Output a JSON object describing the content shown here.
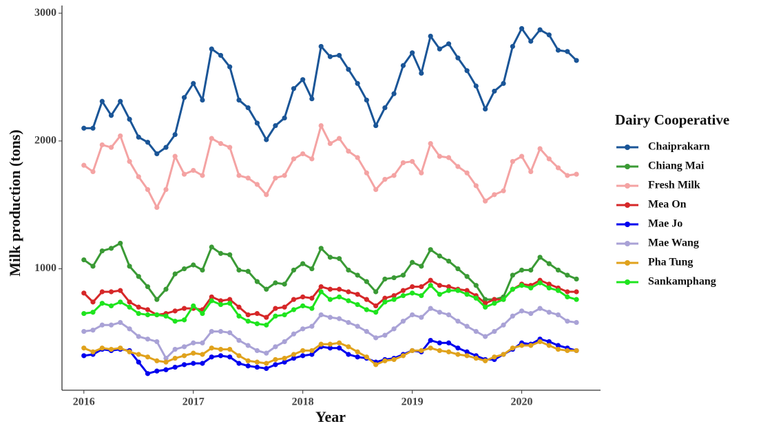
{
  "chart_data": {
    "type": "line",
    "x_label": "Year",
    "y_label": "Milk production (tons)",
    "legend_title": "Dairy Cooperative",
    "legend_position": "right",
    "xlim": [
      2015.8,
      2020.72
    ],
    "ylim": [
      50,
      3060
    ],
    "xticks": [
      2016,
      2017,
      2018,
      2019,
      2020
    ],
    "yticks": [
      1000,
      2000,
      3000
    ],
    "x": [
      2016,
      2016.083,
      2016.167,
      2016.25,
      2016.333,
      2016.417,
      2016.5,
      2016.583,
      2016.667,
      2016.75,
      2016.833,
      2016.917,
      2017,
      2017.083,
      2017.167,
      2017.25,
      2017.333,
      2017.417,
      2017.5,
      2017.583,
      2017.667,
      2017.75,
      2017.833,
      2017.917,
      2018,
      2018.083,
      2018.167,
      2018.25,
      2018.333,
      2018.417,
      2018.5,
      2018.583,
      2018.667,
      2018.75,
      2018.833,
      2018.917,
      2019,
      2019.083,
      2019.167,
      2019.25,
      2019.333,
      2019.417,
      2019.5,
      2019.583,
      2019.667,
      2019.75,
      2019.833,
      2019.917,
      2020,
      2020.083,
      2020.167,
      2020.25,
      2020.333,
      2020.417,
      2020.5
    ],
    "series": [
      {
        "name": "Chaiprakarn",
        "color": "#1a5597",
        "values": [
          2100,
          2100,
          2310,
          2200,
          2310,
          2170,
          2030,
          1990,
          1900,
          1950,
          2050,
          2340,
          2450,
          2320,
          2720,
          2670,
          2580,
          2320,
          2260,
          2140,
          2010,
          2120,
          2180,
          2410,
          2480,
          2330,
          2740,
          2660,
          2670,
          2560,
          2450,
          2320,
          2120,
          2260,
          2370,
          2590,
          2690,
          2530,
          2820,
          2720,
          2760,
          2650,
          2550,
          2430,
          2250,
          2390,
          2450,
          2740,
          2880,
          2780,
          2870,
          2830,
          2710,
          2700,
          2630
        ]
      },
      {
        "name": "Chiang Mai",
        "color": "#3a9a35",
        "values": [
          1070,
          1020,
          1140,
          1160,
          1200,
          1020,
          940,
          860,
          760,
          840,
          960,
          1000,
          1030,
          990,
          1170,
          1120,
          1110,
          990,
          980,
          900,
          840,
          890,
          880,
          990,
          1040,
          1000,
          1160,
          1090,
          1080,
          990,
          950,
          900,
          820,
          920,
          930,
          950,
          1050,
          1020,
          1150,
          1100,
          1060,
          1000,
          940,
          870,
          760,
          760,
          780,
          950,
          990,
          990,
          1090,
          1040,
          990,
          950,
          920
        ]
      },
      {
        "name": "Fresh Milk",
        "color": "#f4a3a3",
        "values": [
          1810,
          1760,
          1970,
          1950,
          2040,
          1840,
          1720,
          1620,
          1480,
          1620,
          1880,
          1740,
          1770,
          1730,
          2020,
          1980,
          1950,
          1730,
          1710,
          1660,
          1580,
          1710,
          1730,
          1860,
          1900,
          1860,
          2120,
          1980,
          2020,
          1920,
          1870,
          1750,
          1620,
          1700,
          1730,
          1830,
          1840,
          1750,
          1980,
          1880,
          1870,
          1800,
          1750,
          1650,
          1530,
          1580,
          1610,
          1840,
          1880,
          1760,
          1940,
          1860,
          1790,
          1730,
          1740
        ]
      },
      {
        "name": "Mea On",
        "color": "#d62728",
        "values": [
          810,
          740,
          820,
          820,
          830,
          740,
          700,
          680,
          640,
          650,
          670,
          690,
          690,
          680,
          780,
          750,
          760,
          700,
          640,
          650,
          620,
          690,
          700,
          760,
          780,
          770,
          860,
          840,
          840,
          820,
          800,
          760,
          710,
          770,
          790,
          830,
          860,
          860,
          910,
          870,
          860,
          840,
          830,
          790,
          730,
          760,
          760,
          840,
          880,
          870,
          910,
          880,
          850,
          820,
          820
        ]
      },
      {
        "name": "Mae Jo",
        "color": "#0000ee",
        "values": [
          320,
          330,
          370,
          360,
          370,
          360,
          270,
          180,
          200,
          210,
          230,
          250,
          260,
          260,
          310,
          320,
          310,
          260,
          240,
          230,
          220,
          250,
          270,
          300,
          320,
          330,
          390,
          380,
          380,
          330,
          310,
          300,
          270,
          290,
          300,
          330,
          360,
          350,
          440,
          420,
          420,
          380,
          350,
          320,
          290,
          290,
          330,
          370,
          420,
          410,
          450,
          430,
          400,
          380,
          360
        ]
      },
      {
        "name": "Mae Wang",
        "color": "#a9a2d6",
        "values": [
          510,
          520,
          560,
          560,
          580,
          530,
          470,
          450,
          430,
          300,
          370,
          390,
          420,
          420,
          510,
          510,
          500,
          440,
          400,
          360,
          340,
          390,
          430,
          490,
          530,
          550,
          640,
          620,
          610,
          580,
          550,
          510,
          460,
          480,
          530,
          590,
          640,
          620,
          690,
          660,
          640,
          590,
          550,
          510,
          470,
          510,
          560,
          630,
          670,
          650,
          690,
          660,
          640,
          590,
          580
        ]
      },
      {
        "name": "Pha Tung",
        "color": "#e0a21c",
        "values": [
          380,
          350,
          380,
          370,
          380,
          350,
          330,
          310,
          280,
          270,
          300,
          320,
          340,
          330,
          380,
          370,
          370,
          320,
          280,
          270,
          260,
          290,
          300,
          330,
          360,
          360,
          410,
          410,
          420,
          390,
          350,
          310,
          250,
          280,
          290,
          320,
          360,
          360,
          380,
          360,
          350,
          330,
          320,
          300,
          280,
          310,
          330,
          380,
          400,
          400,
          430,
          400,
          370,
          360,
          360
        ]
      },
      {
        "name": "Sankamphang",
        "color": "#1ee41e",
        "values": [
          650,
          660,
          730,
          710,
          740,
          700,
          650,
          640,
          640,
          630,
          590,
          600,
          710,
          650,
          750,
          720,
          730,
          630,
          590,
          570,
          560,
          630,
          640,
          680,
          710,
          690,
          820,
          760,
          780,
          750,
          720,
          680,
          660,
          740,
          760,
          790,
          810,
          790,
          870,
          800,
          830,
          830,
          800,
          770,
          700,
          730,
          760,
          840,
          870,
          850,
          890,
          850,
          830,
          780,
          760
        ]
      }
    ]
  }
}
